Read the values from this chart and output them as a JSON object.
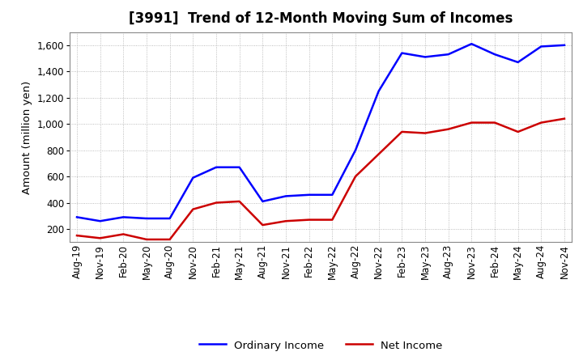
{
  "title": "[3991]  Trend of 12-Month Moving Sum of Incomes",
  "ylabel": "Amount (million yen)",
  "x_labels": [
    "Aug-19",
    "Nov-19",
    "Feb-20",
    "May-20",
    "Aug-20",
    "Nov-20",
    "Feb-21",
    "May-21",
    "Aug-21",
    "Nov-21",
    "Feb-22",
    "May-22",
    "Aug-22",
    "Nov-22",
    "Feb-23",
    "May-23",
    "Aug-23",
    "Nov-23",
    "Feb-24",
    "May-24",
    "Aug-24",
    "Nov-24"
  ],
  "ordinary_income": [
    290,
    260,
    290,
    280,
    280,
    590,
    670,
    670,
    410,
    450,
    460,
    460,
    800,
    1250,
    1540,
    1510,
    1530,
    1610,
    1530,
    1470,
    1590,
    1600
  ],
  "net_income": [
    150,
    130,
    160,
    120,
    120,
    350,
    400,
    410,
    230,
    260,
    270,
    270,
    600,
    770,
    940,
    930,
    960,
    1010,
    1010,
    940,
    1010,
    1040
  ],
  "ordinary_color": "#0000ff",
  "net_color": "#cc0000",
  "ylim": [
    100,
    1700
  ],
  "yticks": [
    200,
    400,
    600,
    800,
    1000,
    1200,
    1400,
    1600
  ],
  "background_color": "#ffffff",
  "grid_color": "#aaaaaa",
  "title_fontsize": 12,
  "axis_fontsize": 8.5,
  "legend_fontsize": 9.5
}
